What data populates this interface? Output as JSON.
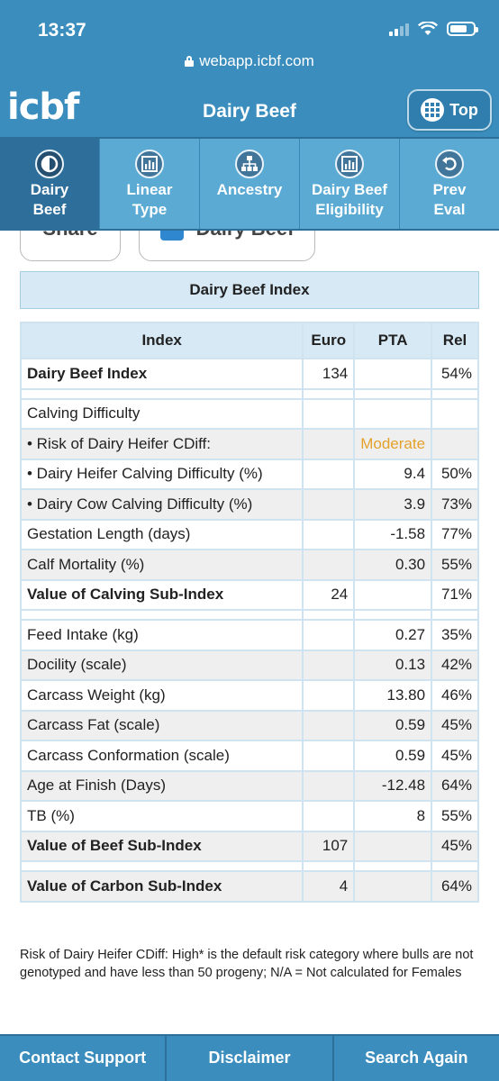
{
  "status_bar": {
    "time": "13:37"
  },
  "url": "webapp.icbf.com",
  "header": {
    "logo": "icbf",
    "title": "Dairy Beef",
    "top_button": "Top"
  },
  "tabs": [
    {
      "line1": "Dairy",
      "line2": "Beef",
      "icon": "half-circle-icon"
    },
    {
      "line1": "Linear",
      "line2": "Type",
      "icon": "bar-chart-icon"
    },
    {
      "line1": "",
      "line2": "Ancestry",
      "icon": "pedigree-tree-icon"
    },
    {
      "line1": "Dairy Beef",
      "line2": "Eligibility",
      "icon": "bar-chart-icon"
    },
    {
      "line1": "Prev",
      "line2": "Eval",
      "icon": "undo-arrow-icon"
    }
  ],
  "buttons": {
    "share": "Share",
    "dairy_beef_toggle": "Dairy Beef"
  },
  "section_title": "Dairy Beef Index",
  "table": {
    "headers": {
      "index": "Index",
      "euro": "Euro",
      "pta": "PTA",
      "rel": "Rel"
    },
    "rows": {
      "r0": {
        "index": "Dairy Beef Index",
        "euro": "134",
        "pta": "",
        "rel": "54%"
      },
      "r1": {
        "index": "Calving Difficulty",
        "euro": "",
        "pta": "",
        "rel": ""
      },
      "r2": {
        "index": "• Risk of Dairy Heifer CDiff:",
        "euro": "",
        "pta": "Moderate",
        "rel": ""
      },
      "r3": {
        "index": "• Dairy Heifer Calving Difficulty (%)",
        "euro": "",
        "pta": "9.4",
        "rel": "50%"
      },
      "r4": {
        "index": "• Dairy Cow Calving Difficulty (%)",
        "euro": "",
        "pta": "3.9",
        "rel": "73%"
      },
      "r5": {
        "index": "Gestation Length (days)",
        "euro": "",
        "pta": "-1.58",
        "rel": "77%"
      },
      "r6": {
        "index": "Calf Mortality (%)",
        "euro": "",
        "pta": "0.30",
        "rel": "55%"
      },
      "r7": {
        "index": "Value of Calving Sub-Index",
        "euro": "24",
        "pta": "",
        "rel": "71%"
      },
      "r8": {
        "index": "Feed Intake (kg)",
        "euro": "",
        "pta": "0.27",
        "rel": "35%"
      },
      "r9": {
        "index": "Docility (scale)",
        "euro": "",
        "pta": "0.13",
        "rel": "42%"
      },
      "r10": {
        "index": "Carcass Weight (kg)",
        "euro": "",
        "pta": "13.80",
        "rel": "46%"
      },
      "r11": {
        "index": "Carcass Fat (scale)",
        "euro": "",
        "pta": "0.59",
        "rel": "45%"
      },
      "r12": {
        "index": "Carcass Conformation (scale)",
        "euro": "",
        "pta": "0.59",
        "rel": "45%"
      },
      "r13": {
        "index": "Age at Finish (Days)",
        "euro": "",
        "pta": "-12.48",
        "rel": "64%"
      },
      "r14": {
        "index": "TB (%)",
        "euro": "",
        "pta": "8",
        "rel": "55%"
      },
      "r15": {
        "index": "Value of Beef Sub-Index",
        "euro": "107",
        "pta": "",
        "rel": "45%"
      },
      "r16": {
        "index": "Value of Carbon Sub-Index",
        "euro": "4",
        "pta": "",
        "rel": "64%"
      }
    }
  },
  "footnote": "Risk of Dairy Heifer CDiff: High* is the default risk category where bulls are not genotyped and have less than 50 progeny; N/A = Not calculated for Females",
  "bottom_bar": {
    "contact": "Contact Support",
    "disclaimer": "Disclaimer",
    "search": "Search Again"
  },
  "colors": {
    "header_blue": "#3a8dbd",
    "tab_blue": "#5aaad4",
    "active_tab": "#2e6e9a",
    "table_header": "#d6e9f4",
    "moderate": "#e4a12b"
  }
}
